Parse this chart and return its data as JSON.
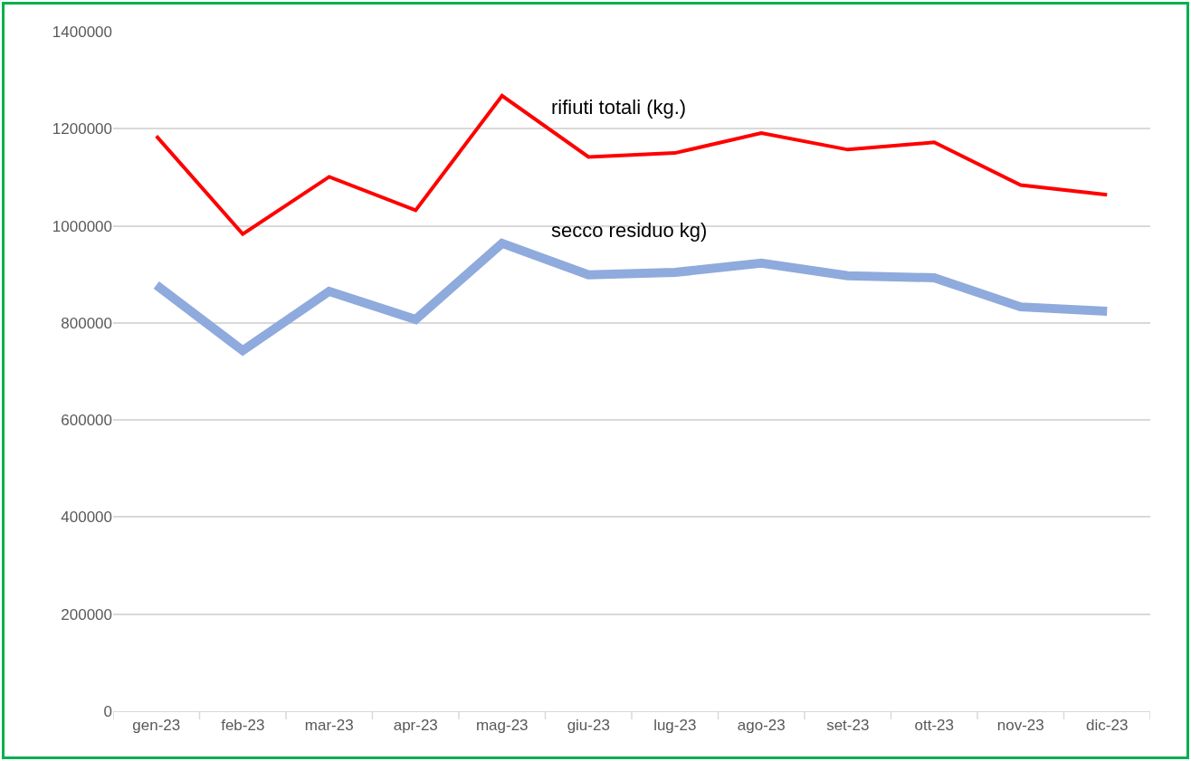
{
  "chart_data": {
    "type": "line",
    "categories": [
      "gen-23",
      "feb-23",
      "mar-23",
      "apr-23",
      "mag-23",
      "giu-23",
      "lug-23",
      "ago-23",
      "set-23",
      "ott-23",
      "nov-23",
      "dic-23"
    ],
    "series": [
      {
        "name": "rifiuti totali (kg.)",
        "color": "#ff0000",
        "values": [
          1185000,
          983000,
          1101000,
          1032000,
          1268000,
          1142000,
          1150000,
          1191000,
          1157000,
          1172000,
          1084000,
          1064000
        ]
      },
      {
        "name": "secco residuo kg)",
        "color": "#8faadc",
        "values": [
          878000,
          743000,
          865000,
          807000,
          964000,
          899000,
          904000,
          923000,
          897000,
          893000,
          833000,
          824000
        ]
      }
    ],
    "ylim": [
      0,
      1400000
    ],
    "yticks": [
      0,
      200000,
      400000,
      600000,
      800000,
      1000000,
      1200000,
      1400000
    ],
    "grid": "y",
    "legend": false,
    "marker": "none",
    "line_style": "solid"
  }
}
